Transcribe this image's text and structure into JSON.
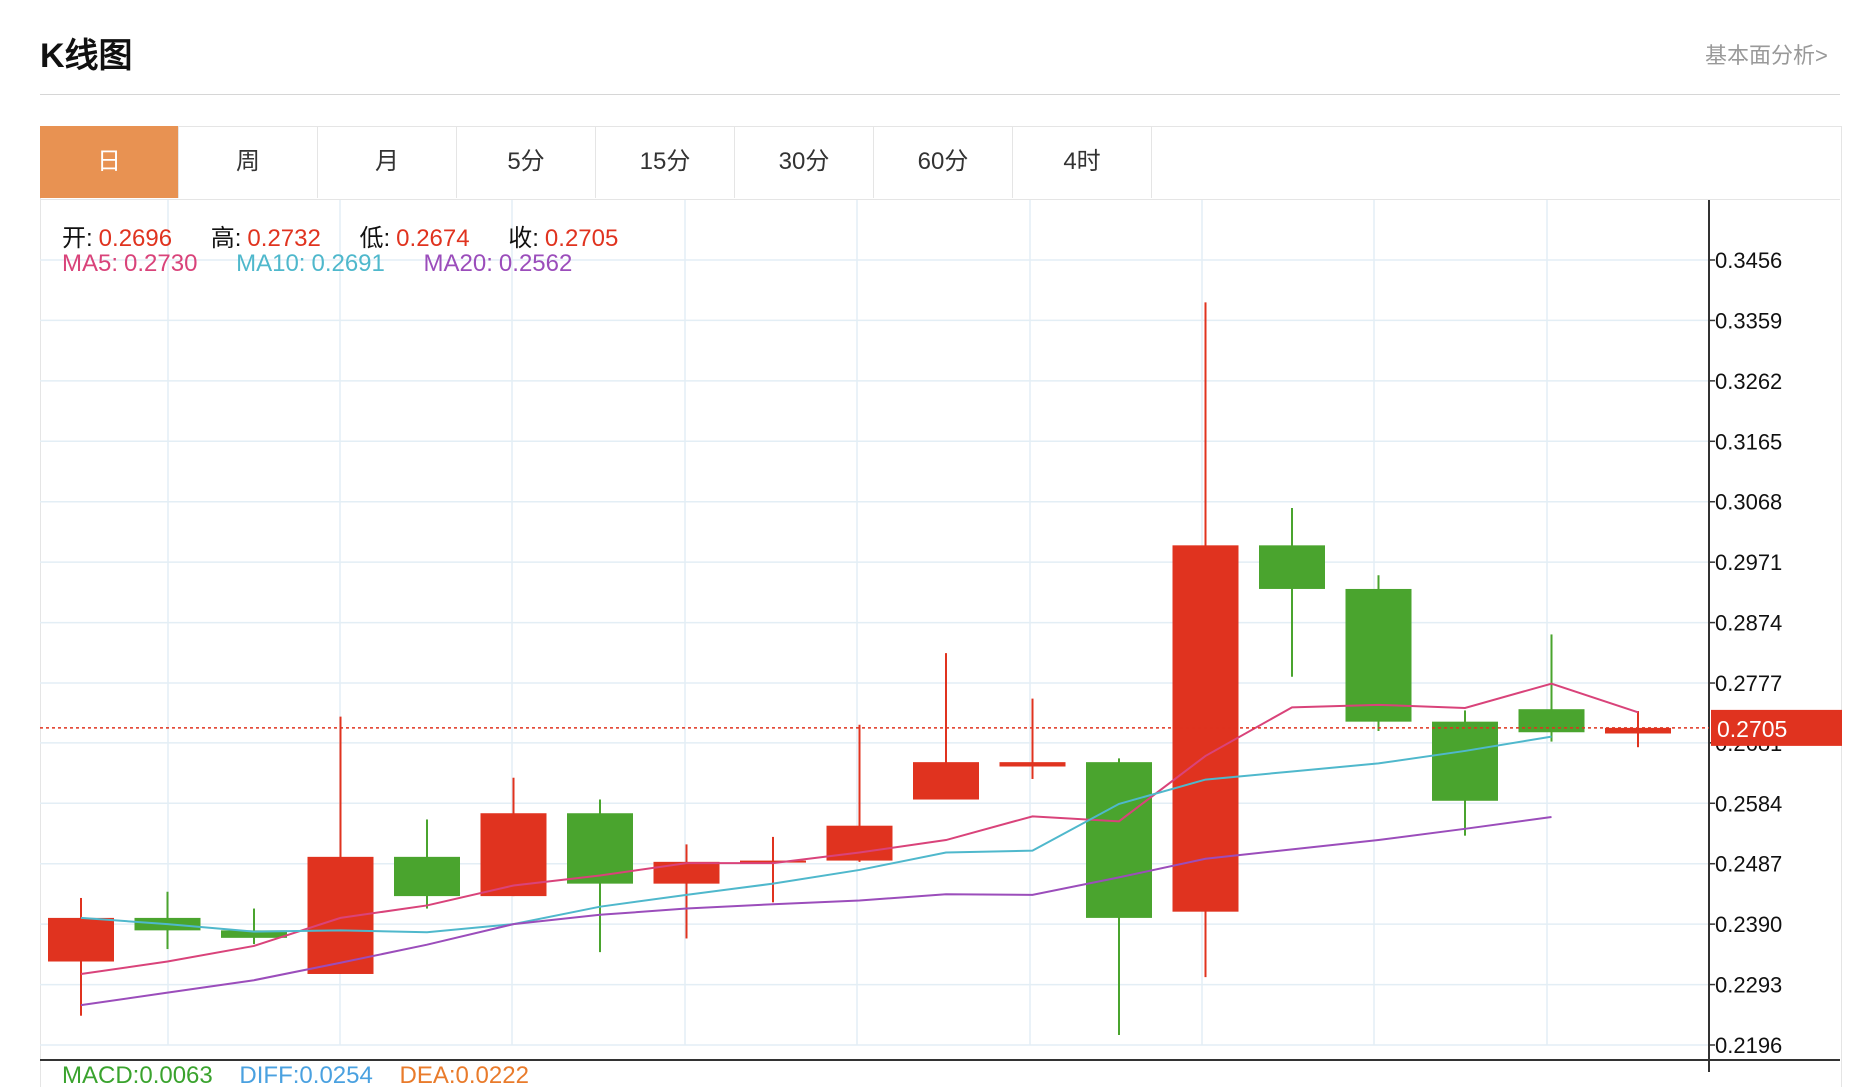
{
  "header": {
    "title": "K线图",
    "link": "基本面分析>"
  },
  "tabs": [
    {
      "label": "日",
      "active": true
    },
    {
      "label": "周",
      "active": false
    },
    {
      "label": "月",
      "active": false
    },
    {
      "label": "5分",
      "active": false
    },
    {
      "label": "15分",
      "active": false
    },
    {
      "label": "30分",
      "active": false
    },
    {
      "label": "60分",
      "active": false
    },
    {
      "label": "4时",
      "active": false
    }
  ],
  "ohlc_legend": {
    "open_label": "开:",
    "open": "0.2696",
    "high_label": "高:",
    "high": "0.2732",
    "low_label": "低:",
    "low": "0.2674",
    "close_label": "收:",
    "close": "0.2705"
  },
  "ma_legend": {
    "ma5_label": "MA5:",
    "ma5": "0.2730",
    "ma10_label": "MA10:",
    "ma10": "0.2691",
    "ma20_label": "MA20:",
    "ma20": "0.2562"
  },
  "macd_legend": {
    "macd_label": "MACD:",
    "macd": "0.0063",
    "diff_label": "DIFF:",
    "diff": "0.0254",
    "dea_label": "DEA:",
    "dea": "0.0222"
  },
  "colors": {
    "up": "#e0331f",
    "down": "#4aa42e",
    "ma5": "#d9437a",
    "ma10": "#4fb8cc",
    "ma20": "#9b4dbb",
    "grid": "#e3eef5",
    "active_tab": "#e89252"
  },
  "chart_data": {
    "type": "candlestick",
    "yticks": [
      "0.3456",
      "0.3359",
      "0.3262",
      "0.3165",
      "0.3068",
      "0.2971",
      "0.2874",
      "0.2777",
      "0.2681",
      "0.2584",
      "0.2487",
      "0.2390",
      "0.2293",
      "0.2196"
    ],
    "ylim": [
      0.2196,
      0.3456
    ],
    "current_price": "0.2705",
    "candles": [
      {
        "open": 0.233,
        "high": 0.2432,
        "low": 0.2243,
        "close": 0.24
      },
      {
        "open": 0.24,
        "high": 0.2442,
        "low": 0.235,
        "close": 0.238
      },
      {
        "open": 0.238,
        "high": 0.2415,
        "low": 0.2358,
        "close": 0.2368
      },
      {
        "open": 0.231,
        "high": 0.2723,
        "low": 0.231,
        "close": 0.2498
      },
      {
        "open": 0.2498,
        "high": 0.2558,
        "low": 0.2415,
        "close": 0.2435
      },
      {
        "open": 0.2435,
        "high": 0.2625,
        "low": 0.2435,
        "close": 0.2568
      },
      {
        "open": 0.2568,
        "high": 0.259,
        "low": 0.2345,
        "close": 0.2455
      },
      {
        "open": 0.2455,
        "high": 0.2518,
        "low": 0.2367,
        "close": 0.249
      },
      {
        "open": 0.249,
        "high": 0.253,
        "low": 0.2425,
        "close": 0.2492
      },
      {
        "open": 0.2492,
        "high": 0.271,
        "low": 0.249,
        "close": 0.2548
      },
      {
        "open": 0.259,
        "high": 0.2825,
        "low": 0.259,
        "close": 0.265
      },
      {
        "open": 0.2643,
        "high": 0.2752,
        "low": 0.2623,
        "close": 0.265
      },
      {
        "open": 0.265,
        "high": 0.2656,
        "low": 0.2212,
        "close": 0.24
      },
      {
        "open": 0.241,
        "high": 0.3388,
        "low": 0.2305,
        "close": 0.2998
      },
      {
        "open": 0.2998,
        "high": 0.3058,
        "low": 0.2787,
        "close": 0.2928
      },
      {
        "open": 0.2928,
        "high": 0.295,
        "low": 0.27,
        "close": 0.2715
      },
      {
        "open": 0.2715,
        "high": 0.2733,
        "low": 0.2532,
        "close": 0.2588
      },
      {
        "open": 0.2735,
        "high": 0.2855,
        "low": 0.2683,
        "close": 0.2698
      },
      {
        "open": 0.2696,
        "high": 0.2732,
        "low": 0.2674,
        "close": 0.2705
      }
    ],
    "ma5": [
      0.231,
      0.233,
      0.2355,
      0.24,
      0.242,
      0.2452,
      0.2468,
      0.2488,
      0.2488,
      0.2505,
      0.2525,
      0.2563,
      0.2555,
      0.266,
      0.2738,
      0.2742,
      0.2737,
      0.2776,
      0.273
    ],
    "ma10": [
      0.24,
      0.239,
      0.2378,
      0.238,
      0.2377,
      0.239,
      0.2418,
      0.2437,
      0.2455,
      0.2477,
      0.2505,
      0.2508,
      0.2583,
      0.2622,
      0.2635,
      0.2648,
      0.2668,
      0.2691
    ],
    "ma20": [
      0.226,
      0.228,
      0.23,
      0.2328,
      0.2357,
      0.239,
      0.2405,
      0.2415,
      0.2422,
      0.2428,
      0.2438,
      0.2437,
      0.2465,
      0.2495,
      0.251,
      0.2525,
      0.2543,
      0.2562
    ]
  }
}
